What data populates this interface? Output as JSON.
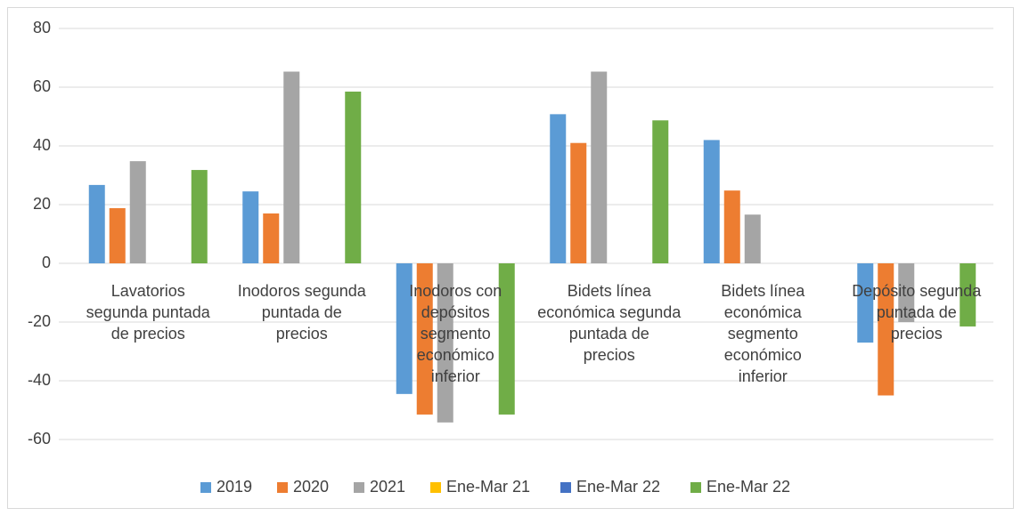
{
  "chart_data": {
    "type": "bar",
    "categories": [
      "Lavatorios segunda puntada de precios",
      "Inodoros segunda puntada de precios",
      "Inodoros con depósitos segmento económico inferior",
      "Bidets línea económica segunda puntada de precios",
      "Bidets línea económica segmento económico inferior",
      "Depósito segunda puntada de precios"
    ],
    "series": [
      {
        "name": "2019",
        "color": "#5b9bd5",
        "values": [
          26.7,
          24.5,
          -44.5,
          50.8,
          42,
          -27
        ]
      },
      {
        "name": "2020",
        "color": "#ed7d31",
        "values": [
          18.8,
          17,
          -51.5,
          41,
          24.8,
          -45
        ]
      },
      {
        "name": "2021",
        "color": "#a5a5a5",
        "values": [
          34.8,
          65.3,
          -54.2,
          65.3,
          16.6,
          -20
        ]
      },
      {
        "name": "Ene-Mar 21",
        "color": "#ffc000",
        "values": [
          null,
          null,
          null,
          null,
          null,
          null
        ]
      },
      {
        "name": "Ene-Mar 22",
        "color": "#4472c4",
        "values": [
          null,
          null,
          null,
          null,
          null,
          null
        ]
      },
      {
        "name": "Ene-Mar 22",
        "color": "#70ad47",
        "values": [
          31.8,
          58.5,
          -51.5,
          48.7,
          null,
          -21.5
        ]
      }
    ],
    "ylim": [
      -60,
      80
    ],
    "yticks": [
      -60,
      -40,
      -20,
      0,
      20,
      40,
      60,
      80
    ],
    "grid": true,
    "legend": "bottom"
  }
}
